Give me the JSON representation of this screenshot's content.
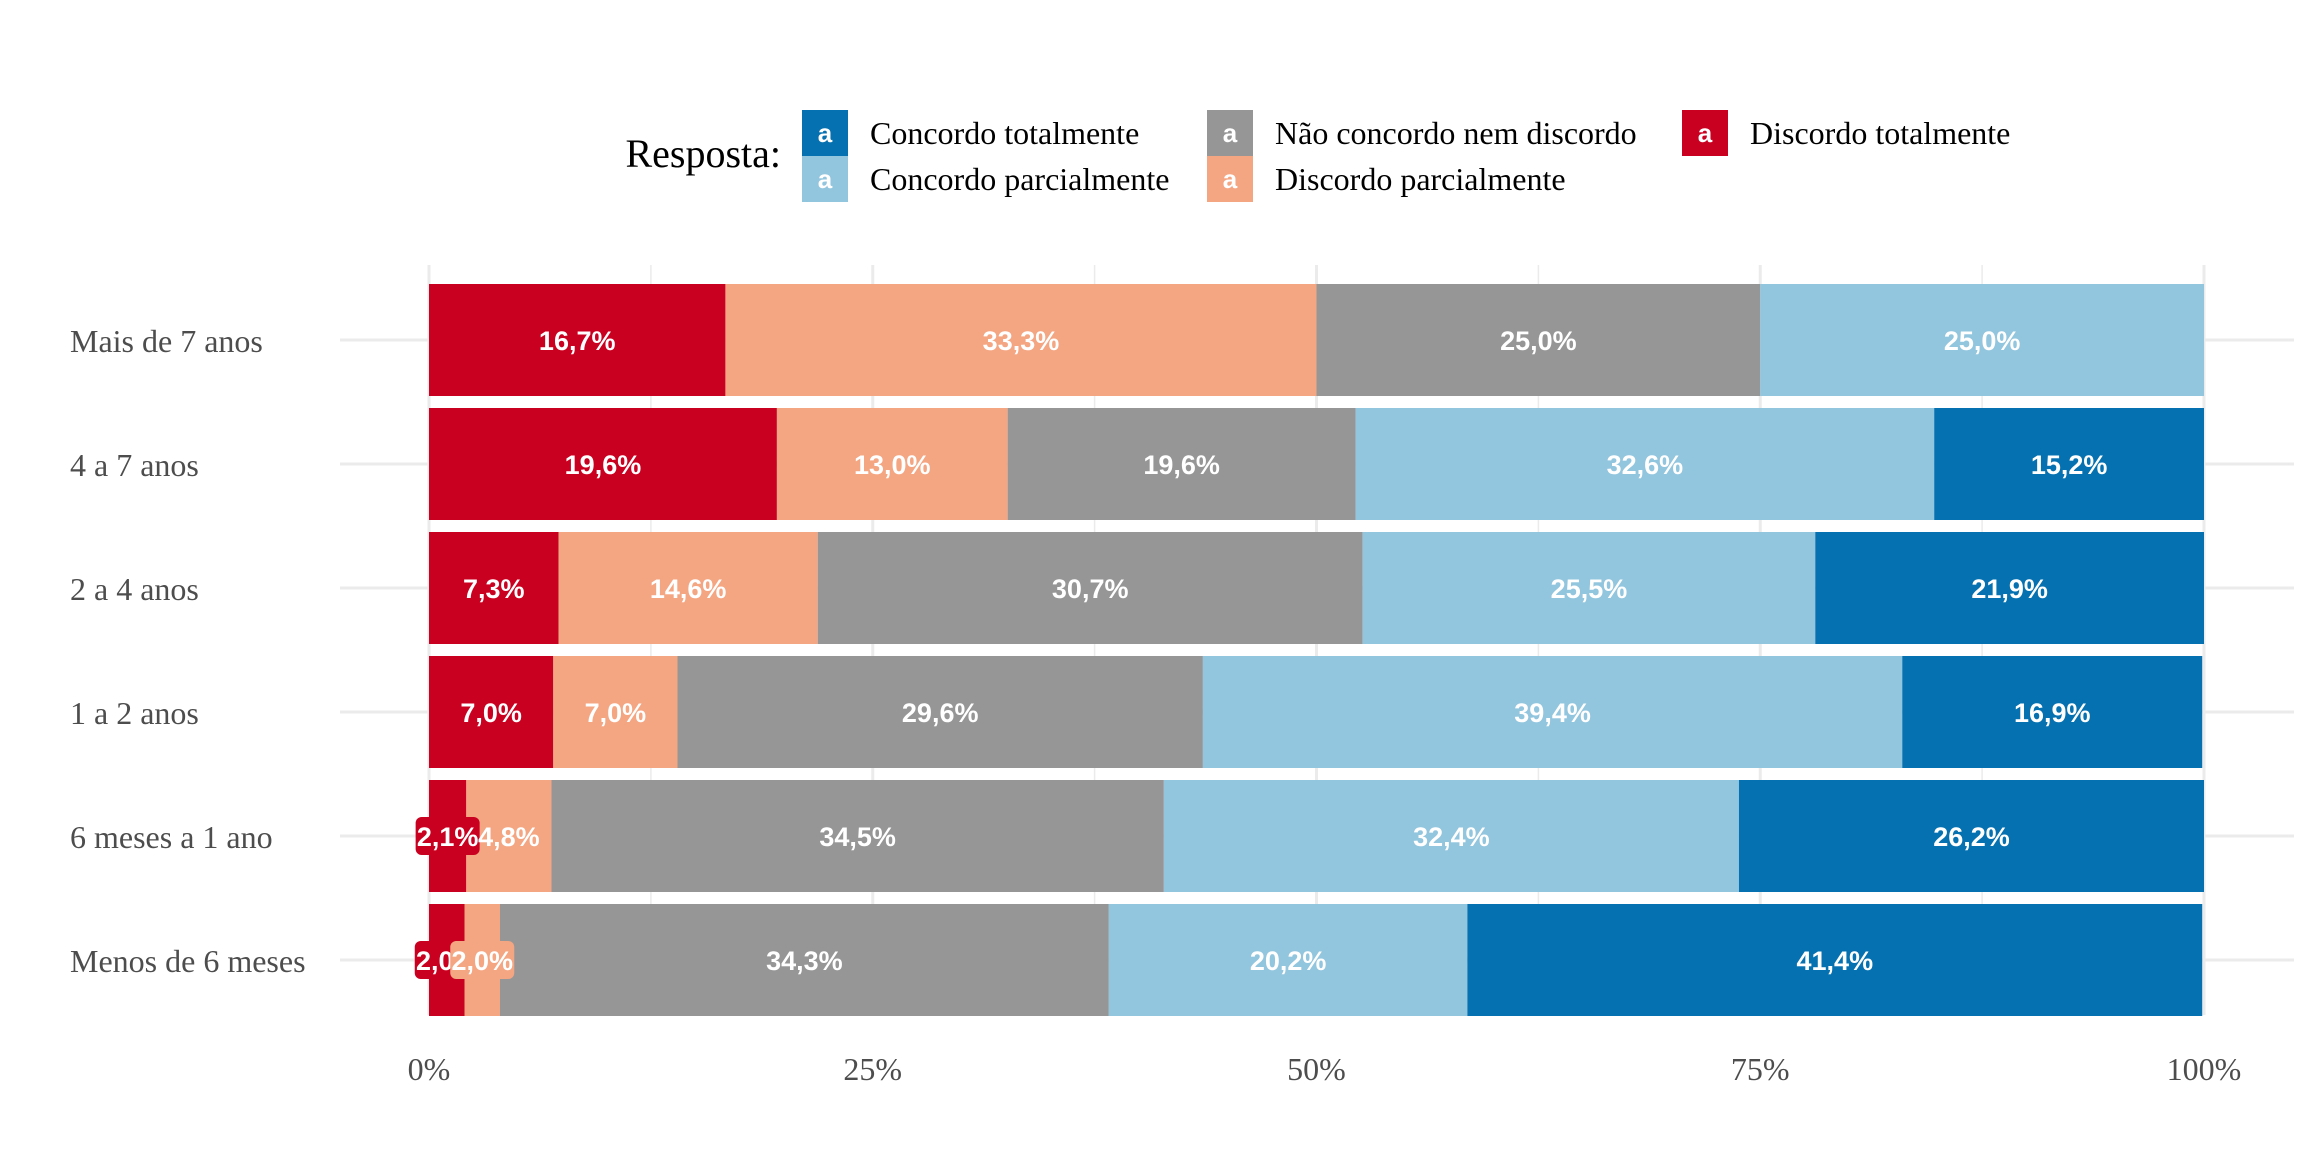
{
  "chart_data": {
    "type": "bar",
    "orientation": "horizontal",
    "stacked": "percent",
    "categories": [
      "Mais de 7 anos",
      "4 a 7 anos",
      "2 a 4 anos",
      "1 a 2 anos",
      "6 meses a 1 ano",
      "Menos de 6 meses"
    ],
    "series": [
      {
        "name": "Discordo totalmente",
        "color": "#CA0020",
        "values": [
          16.7,
          19.6,
          7.3,
          7.0,
          2.1,
          2.0
        ],
        "labels": [
          "16,7%",
          "19,6%",
          "7,3%",
          "7,0%",
          "2,1%",
          "2,0%"
        ]
      },
      {
        "name": "Discordo parcialmente",
        "color": "#F4A582",
        "values": [
          33.3,
          13.0,
          14.6,
          7.0,
          4.8,
          2.0
        ],
        "labels": [
          "33,3%",
          "13,0%",
          "14,6%",
          "7,0%",
          "4,8%",
          "2,0%"
        ]
      },
      {
        "name": "Não concordo nem discordo",
        "color": "#969696",
        "values": [
          25.0,
          19.6,
          30.7,
          29.6,
          34.5,
          34.3
        ],
        "labels": [
          "25,0%",
          "19,6%",
          "30,7%",
          "29,6%",
          "34,5%",
          "34,3%"
        ]
      },
      {
        "name": "Concordo parcialmente",
        "color": "#92C5DE",
        "values": [
          25.0,
          32.6,
          25.5,
          39.4,
          32.4,
          20.2
        ],
        "labels": [
          "25,0%",
          "32,6%",
          "25,5%",
          "39,4%",
          "32,4%",
          "20,2%"
        ]
      },
      {
        "name": "Concordo totalmente",
        "color": "#0571B0",
        "values": [
          0,
          15.2,
          21.9,
          16.9,
          26.2,
          41.4
        ],
        "labels": [
          "",
          "15,2%",
          "21,9%",
          "16,9%",
          "26,2%",
          "41,4%"
        ]
      }
    ],
    "x_ticks": [
      "0%",
      "25%",
      "50%",
      "75%",
      "100%"
    ],
    "xlim": [
      0,
      100
    ],
    "xlabel": "",
    "ylabel": "",
    "grid": true,
    "legend": {
      "title": "Resposta:",
      "position": "top",
      "key_glyph": "a",
      "entries": [
        "Concordo totalmente",
        "Concordo parcialmente",
        "Não concordo nem discordo",
        "Discordo parcialmente",
        "Discordo totalmente"
      ]
    }
  }
}
